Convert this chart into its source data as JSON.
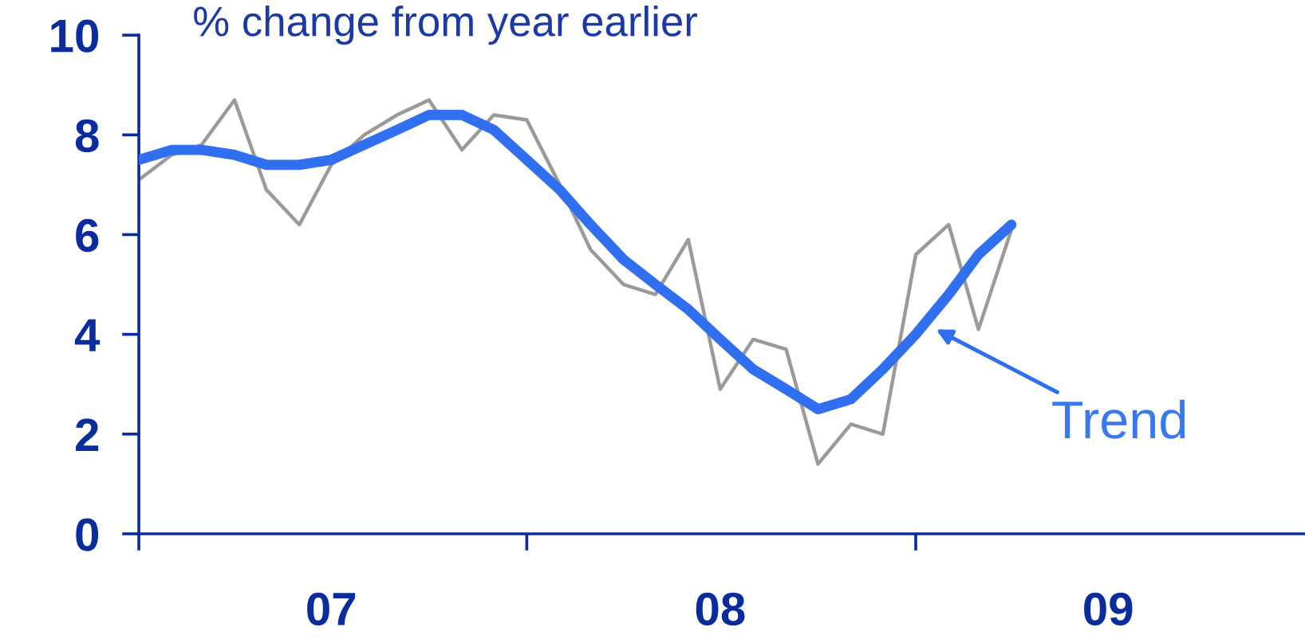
{
  "chart_data": {
    "type": "line",
    "title": "% change from year earlier",
    "x": [
      "2007-01",
      "2007-02",
      "2007-03",
      "2007-04",
      "2007-05",
      "2007-06",
      "2007-07",
      "2007-08",
      "2007-09",
      "2007-10",
      "2007-11",
      "2007-12",
      "2008-01",
      "2008-02",
      "2008-03",
      "2008-04",
      "2008-05",
      "2008-06",
      "2008-07",
      "2008-08",
      "2008-09",
      "2008-10",
      "2008-11",
      "2008-12",
      "2009-01",
      "2009-02",
      "2009-03",
      "2009-04"
    ],
    "series": [
      {
        "color": "#9a9a9a",
        "values": [
          7.1,
          7.6,
          7.8,
          8.7,
          6.9,
          6.2,
          7.4,
          8.0,
          8.4,
          8.7,
          7.7,
          8.4,
          8.3,
          7.0,
          5.7,
          5.0,
          4.8,
          5.9,
          2.9,
          3.9,
          3.7,
          1.4,
          2.2,
          2.0,
          5.6,
          6.2,
          4.1,
          6.1
        ]
      },
      {
        "color": "#2f6ff0",
        "values": [
          7.5,
          7.7,
          7.7,
          7.6,
          7.4,
          7.4,
          7.5,
          7.8,
          8.1,
          8.4,
          8.4,
          8.1,
          7.5,
          6.9,
          6.2,
          5.5,
          5.0,
          4.5,
          3.9,
          3.3,
          2.9,
          2.5,
          2.7,
          3.3,
          4.0,
          4.8,
          5.6,
          6.2
        ]
      }
    ],
    "xlim": [
      "2007-01",
      "2010-01"
    ],
    "xticks": [
      {
        "value": "2007-01",
        "label": null
      },
      {
        "value": "2007-07",
        "label": "07"
      },
      {
        "value": "2008-01",
        "label": null
      },
      {
        "value": "2008-07",
        "label": "08"
      },
      {
        "value": "2009-01",
        "label": null
      },
      {
        "value": "2009-07",
        "label": "09"
      }
    ],
    "ylim": [
      0,
      10
    ],
    "yticks": [
      0,
      2,
      4,
      6,
      8,
      10
    ],
    "annotations": [
      {
        "text": "Trend",
        "x": "2009-01-20",
        "y": 4.1
      }
    ]
  }
}
